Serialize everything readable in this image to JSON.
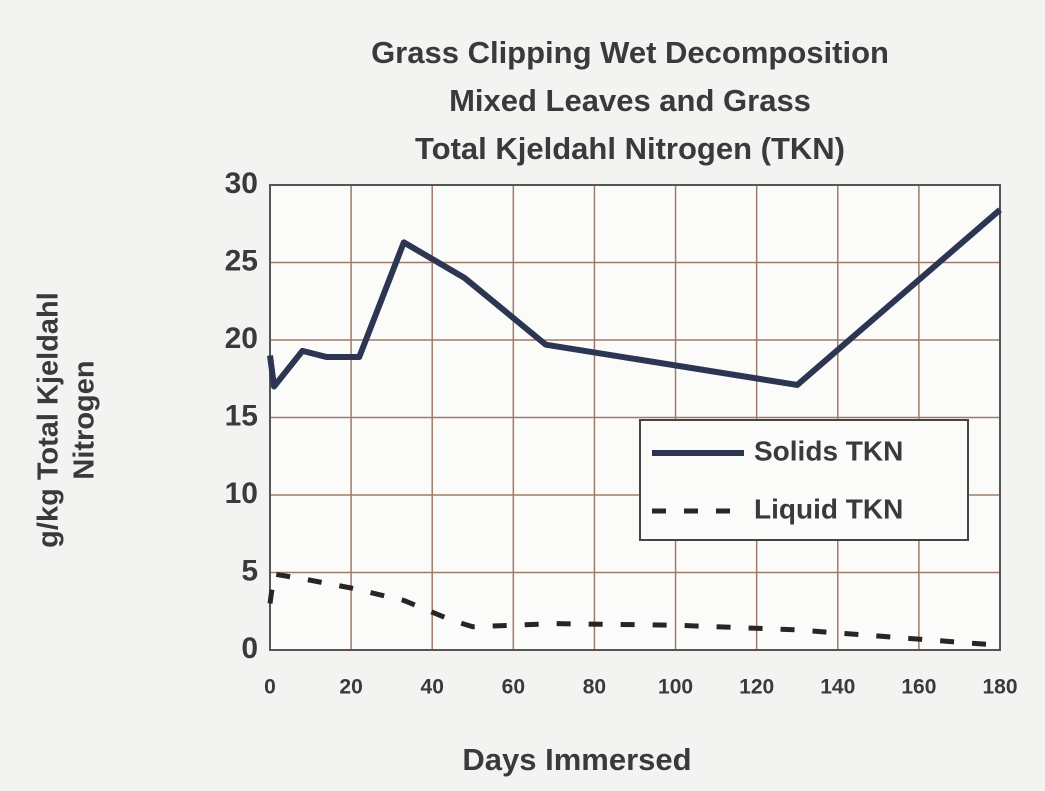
{
  "chart_data": {
    "type": "line",
    "title": [
      "Grass Clipping Wet Decomposition",
      "Mixed Leaves and Grass",
      "Total Kjeldahl Nitrogen (TKN)"
    ],
    "x_label": "Days Immersed",
    "y_label": [
      "g/kg Total Kjeldahl",
      "Nitrogen"
    ],
    "xlim": [
      0,
      180
    ],
    "xticks": [
      0,
      20,
      40,
      60,
      80,
      100,
      120,
      140,
      160,
      180
    ],
    "ylim": [
      0,
      30
    ],
    "yticks": [
      0,
      5,
      10,
      15,
      20,
      25,
      30
    ],
    "grid": true,
    "grid_color": "#a07a68",
    "legend": "right",
    "series": [
      {
        "name": "Solids TKN",
        "color": "#2c3652",
        "dash": "solid",
        "x": [
          0,
          1,
          8,
          14,
          22,
          33,
          48,
          68,
          130,
          180
        ],
        "values": [
          19,
          17,
          19.3,
          18.9,
          18.9,
          26.3,
          24,
          19.7,
          17.1,
          28.4
        ]
      },
      {
        "name": "Liquid TKN",
        "color": "#262626",
        "dash": "dashed",
        "x": [
          0,
          1,
          10,
          20,
          33,
          45,
          50,
          70,
          100,
          130,
          150,
          165,
          180
        ],
        "values": [
          3,
          4.9,
          4.5,
          4,
          3.2,
          1.9,
          1.5,
          1.7,
          1.6,
          1.3,
          0.9,
          0.6,
          0.3
        ]
      }
    ]
  }
}
